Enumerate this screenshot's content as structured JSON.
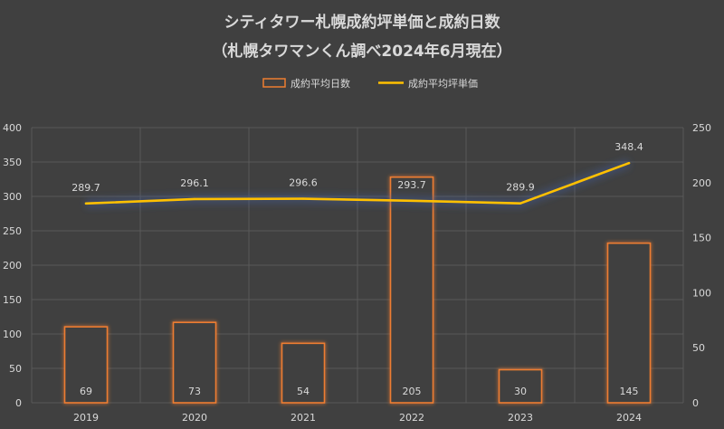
{
  "chart_data": {
    "type": "bar",
    "title": "シティタワー札幌成約坪単価と成約日数",
    "subtitle": "（札幌タワマンくん調べ2024年6月現在）",
    "categories": [
      "2019",
      "2020",
      "2021",
      "2022",
      "2023",
      "2024"
    ],
    "series": [
      {
        "name": "成約平均日数",
        "type": "bar",
        "axis": "right",
        "values": [
          69,
          73,
          54,
          205,
          30,
          145
        ],
        "labels": [
          "69",
          "73",
          "54",
          "205",
          "30",
          "145"
        ]
      },
      {
        "name": "成約平均坪単価",
        "type": "line",
        "axis": "left",
        "values": [
          289.7,
          296.1,
          296.6,
          293.7,
          289.9,
          348.4
        ],
        "labels": [
          "289.7",
          "296.1",
          "296.6",
          "293.7",
          "289.9",
          "348.4"
        ]
      }
    ],
    "y_left": {
      "min": 0,
      "max": 400,
      "ticks": [
        "0",
        "50",
        "100",
        "150",
        "200",
        "250",
        "300",
        "350",
        "400"
      ]
    },
    "y_right": {
      "min": 0,
      "max": 250,
      "ticks": [
        "0",
        "50",
        "100",
        "150",
        "200",
        "250"
      ]
    },
    "legend_position": "top-center",
    "grid": true,
    "colors": {
      "background": "#404040",
      "bar_stroke": "#ED7D31",
      "line": "#FFC000",
      "text": "#D9D9D9",
      "grid": "#595959"
    }
  }
}
